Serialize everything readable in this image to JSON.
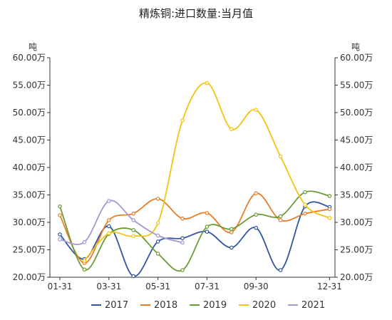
{
  "chart_data": {
    "type": "line",
    "title": "精炼铜:进口数量:当月值",
    "y_unit_left": "吨",
    "y_unit_right": "吨",
    "ylim": [
      20.0,
      60.0
    ],
    "y_ticks": [
      "20.00万",
      "25.00万",
      "30.00万",
      "35.00万",
      "40.00万",
      "45.00万",
      "50.00万",
      "55.00万",
      "60.00万"
    ],
    "x_ticks": [
      "01-31",
      "03-31",
      "05-31",
      "07-31",
      "09-30",
      "12-31"
    ],
    "x_tick_month_index": [
      0,
      2,
      4,
      6,
      8,
      11
    ],
    "series": [
      {
        "name": "2017",
        "color": "#2f55a4",
        "values": [
          27.8,
          23.3,
          29.3,
          20.2,
          26.5,
          27.1,
          28.3,
          25.4,
          29.0,
          21.3,
          32.9,
          32.8
        ]
      },
      {
        "name": "2018",
        "color": "#e87d26",
        "values": [
          31.3,
          22.6,
          30.4,
          31.6,
          34.3,
          30.7,
          31.7,
          28.2,
          35.3,
          30.4,
          31.6,
          32.4
        ]
      },
      {
        "name": "2019",
        "color": "#6b9b37",
        "values": [
          32.9,
          21.4,
          27.9,
          28.6,
          24.3,
          21.3,
          29.2,
          28.8,
          31.4,
          31.1,
          35.5,
          34.8
        ]
      },
      {
        "name": "2020",
        "color": "#f2c314",
        "values": [
          null,
          23.0,
          28.0,
          27.5,
          29.9,
          48.6,
          55.4,
          47.0,
          50.5,
          42.0,
          33.2,
          30.8
        ]
      },
      {
        "name": "2021",
        "color": "#a696d1",
        "values": [
          26.9,
          26.4,
          33.9,
          30.4,
          27.6,
          26.3,
          null,
          null,
          null,
          null,
          null,
          null
        ]
      }
    ]
  }
}
